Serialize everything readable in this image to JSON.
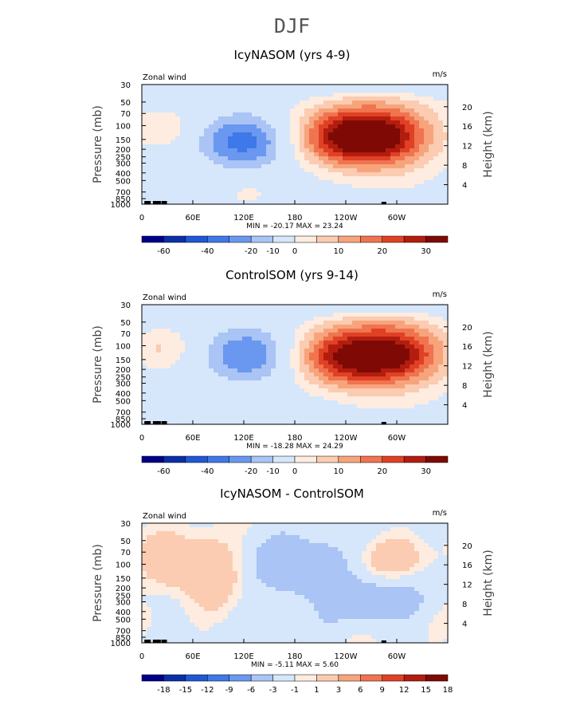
{
  "super_title": "DJF",
  "chart_data": [
    {
      "type": "heatmap",
      "title": "IcyNASOM (yrs 4-9)",
      "left_label": "Zonal wind",
      "right_label": "m/s",
      "xlabel": "",
      "ylabel": "Pressure (mb)",
      "ylabel_right": "Height (km)",
      "x_ticks": [
        "0",
        "60E",
        "120E",
        "180",
        "120W",
        "60W"
      ],
      "y_ticks": [
        "30",
        "50",
        "70",
        "100",
        "150",
        "200",
        "250",
        "300",
        "400",
        "500",
        "700",
        "850",
        "1000"
      ],
      "height_ticks": [
        "20",
        "16",
        "12",
        "8",
        "4"
      ],
      "min_max": "MIN = -20.17   MAX =  23.24",
      "colorbar_ticks": [
        "-60",
        "-40",
        "-20",
        "-10",
        "0",
        "10",
        "20",
        "30"
      ],
      "features": [
        {
          "lon": 235,
          "p": 140,
          "u": 23
        },
        {
          "lon": 285,
          "p": 140,
          "u": 22
        },
        {
          "lon": 20,
          "p": 110,
          "u": 8
        },
        {
          "lon": 120,
          "p": 160,
          "u": -20
        },
        {
          "lon": 130,
          "p": 700,
          "u": 5
        }
      ]
    },
    {
      "type": "heatmap",
      "title": "ControlSOM (yrs 9-14)",
      "left_label": "Zonal wind",
      "right_label": "m/s",
      "xlabel": "",
      "ylabel": "Pressure (mb)",
      "ylabel_right": "Height (km)",
      "x_ticks": [
        "0",
        "60E",
        "120E",
        "180",
        "120W",
        "60W"
      ],
      "y_ticks": [
        "30",
        "50",
        "70",
        "100",
        "150",
        "200",
        "250",
        "300",
        "400",
        "500",
        "700",
        "850",
        "1000"
      ],
      "height_ticks": [
        "20",
        "16",
        "12",
        "8",
        "4"
      ],
      "min_max": "MIN = -18.28   MAX =  24.29",
      "colorbar_ticks": [
        "-60",
        "-40",
        "-20",
        "-10",
        "0",
        "10",
        "20",
        "30"
      ],
      "features": [
        {
          "lon": 235,
          "p": 140,
          "u": 24
        },
        {
          "lon": 300,
          "p": 130,
          "u": 24
        },
        {
          "lon": 20,
          "p": 110,
          "u": 9
        },
        {
          "lon": 125,
          "p": 130,
          "u": -18
        },
        {
          "lon": 130,
          "p": 700,
          "u": 4
        }
      ]
    },
    {
      "type": "heatmap",
      "title": "IcyNASOM - ControlSOM",
      "left_label": "Zonal wind",
      "right_label": "m/s",
      "xlabel": "",
      "ylabel": "Pressure (mb)",
      "ylabel_right": "Height (km)",
      "x_ticks": [
        "0",
        "60E",
        "120E",
        "180",
        "120W",
        "60W"
      ],
      "y_ticks": [
        "30",
        "50",
        "70",
        "100",
        "150",
        "200",
        "250",
        "300",
        "400",
        "500",
        "700",
        "850",
        "1000"
      ],
      "height_ticks": [
        "20",
        "16",
        "12",
        "8",
        "4"
      ],
      "min_max": "MIN = -5.11   MAX =   5.60",
      "colorbar_ticks": [
        "-18",
        "-15",
        "-12",
        "-9",
        "-6",
        "-3",
        "-1",
        "1",
        "3",
        "6",
        "9",
        "12",
        "15",
        "18"
      ],
      "features": [
        {
          "lon": 190,
          "p": 120,
          "u": -5
        },
        {
          "lon": 60,
          "p": 110,
          "u": 5
        },
        {
          "lon": 300,
          "p": 120,
          "u": 3
        },
        {
          "lon": 280,
          "p": 250,
          "u": -4
        }
      ]
    }
  ],
  "colors": {
    "scale": [
      "#00008b",
      "#0a2fa8",
      "#1f58d6",
      "#3f78e8",
      "#6a98f0",
      "#a9c4f5",
      "#d6e6fb",
      "#fdecdf",
      "#fbccb1",
      "#f7a47c",
      "#ef744f",
      "#e04125",
      "#b21d0f",
      "#7f0a05"
    ]
  }
}
